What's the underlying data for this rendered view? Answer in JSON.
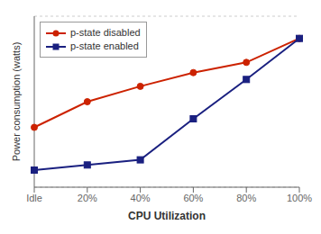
{
  "chart_data": {
    "type": "line",
    "x_label": "CPU Utilization",
    "y_label": "Power consumption (watts)",
    "categories": [
      "Idle",
      "20%",
      "40%",
      "60%",
      "80%",
      "100%"
    ],
    "series": [
      {
        "name": "p-state disabled",
        "color": "#cc2200",
        "marker": "circle",
        "line_style": "solid",
        "values": [
          0.35,
          0.5,
          0.59,
          0.67,
          0.73,
          0.87
        ]
      },
      {
        "name": "p-state enabled",
        "color": "#1a2080",
        "marker": "square",
        "line_style": "solid",
        "values": [
          0.1,
          0.13,
          0.16,
          0.4,
          0.63,
          0.87
        ]
      }
    ],
    "ylim": [
      0.0,
      1.0
    ],
    "yticks": [
      0.0,
      0.2,
      0.4,
      0.6,
      0.8,
      1.0
    ],
    "grid": true,
    "legend": "upper left",
    "tick_labels": "x"
  }
}
